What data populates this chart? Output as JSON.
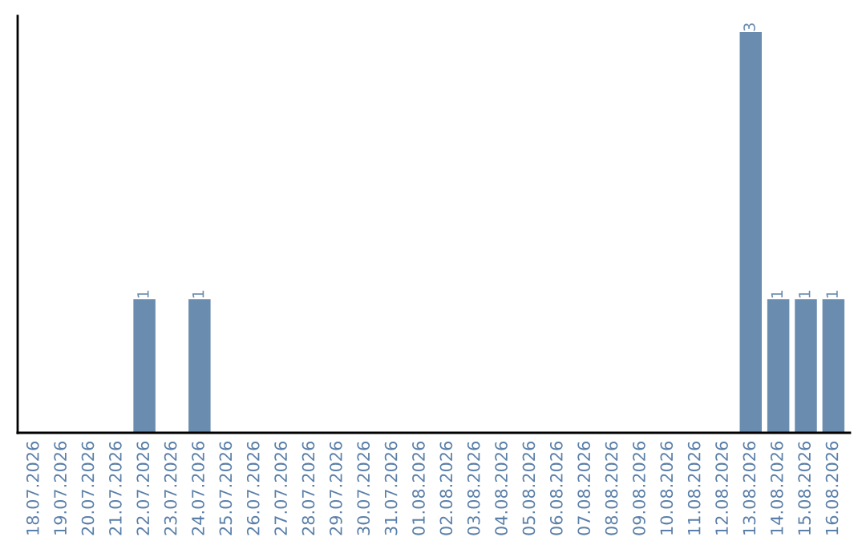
{
  "chart_data": {
    "type": "bar",
    "categories": [
      "18.07.2026",
      "19.07.2026",
      "20.07.2026",
      "21.07.2026",
      "22.07.2026",
      "23.07.2026",
      "24.07.2026",
      "25.07.2026",
      "26.07.2026",
      "27.07.2026",
      "28.07.2026",
      "29.07.2026",
      "30.07.2026",
      "31.07.2026",
      "01.08.2026",
      "02.08.2026",
      "03.08.2026",
      "04.08.2026",
      "05.08.2026",
      "06.08.2026",
      "07.08.2026",
      "08.08.2026",
      "09.08.2026",
      "10.08.2026",
      "11.08.2026",
      "12.08.2026",
      "13.08.2026",
      "14.08.2026",
      "15.08.2026",
      "16.08.2026"
    ],
    "values": [
      0,
      0,
      0,
      0,
      1,
      0,
      1,
      0,
      0,
      0,
      0,
      0,
      0,
      0,
      0,
      0,
      0,
      0,
      0,
      0,
      0,
      0,
      0,
      0,
      0,
      0,
      3,
      1,
      1,
      1
    ],
    "value_labels": [
      null,
      null,
      null,
      null,
      "1",
      null,
      "1",
      null,
      null,
      null,
      null,
      null,
      null,
      null,
      null,
      null,
      null,
      null,
      null,
      null,
      null,
      null,
      null,
      null,
      null,
      null,
      "3",
      "1",
      "1",
      "1"
    ],
    "color": "#6a8caf",
    "tick_labels": "x",
    "grid": false,
    "legend": false
  }
}
